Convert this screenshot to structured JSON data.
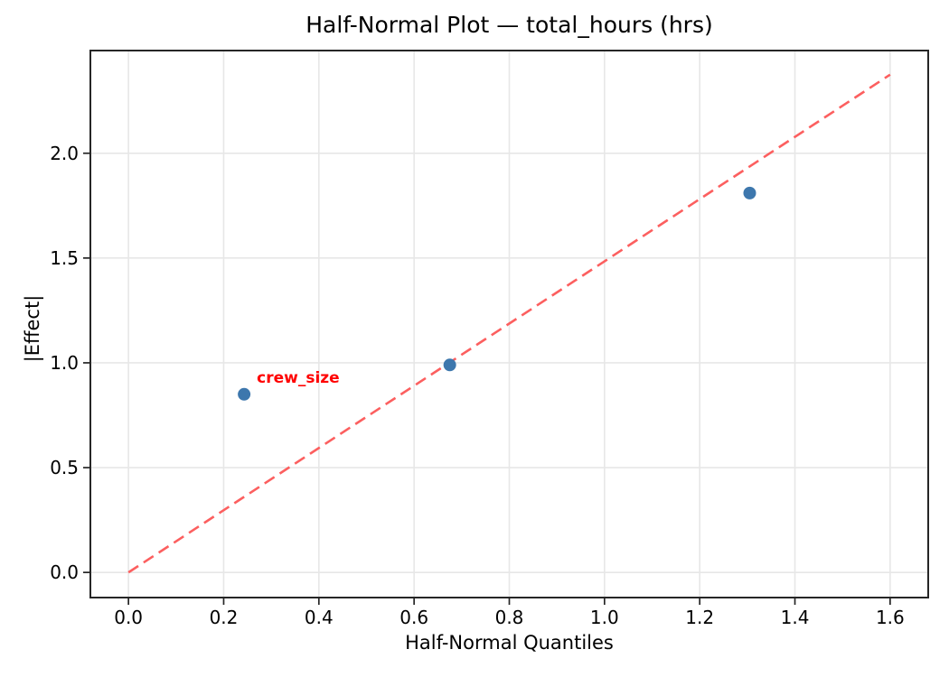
{
  "chart_data": {
    "type": "scatter",
    "title": "Half-Normal Plot — total_hours (hrs)",
    "xlabel": "Half-Normal Quantiles",
    "ylabel": "|Effect|",
    "xlim": [
      -0.08,
      1.68
    ],
    "ylim": [
      -0.12,
      2.49
    ],
    "xticks": [
      0.0,
      0.2,
      0.4,
      0.6,
      0.8,
      1.0,
      1.2,
      1.4,
      1.6
    ],
    "yticks": [
      0.0,
      0.5,
      1.0,
      1.5,
      2.0
    ],
    "tick_decimals": 1,
    "grid": true,
    "legend": null,
    "points": [
      {
        "x": 0.243,
        "y": 0.85
      },
      {
        "x": 0.675,
        "y": 0.99
      },
      {
        "x": 1.305,
        "y": 1.81
      }
    ],
    "annotation": {
      "text": "crew_size",
      "point_index": 0,
      "offset_x": 14,
      "offset_y": -13,
      "color": "#ff0000"
    },
    "reference_line": {
      "x0": 0.0,
      "y0": 0.0,
      "x1": 1.6,
      "y1": 2.375,
      "style": "dashed",
      "color": "#fc5f5f"
    },
    "colors": {
      "marker": "#3d77ad",
      "grid": "#e7e7e7",
      "spine": "#262626",
      "tick": "#262626",
      "text": "#000000"
    }
  }
}
